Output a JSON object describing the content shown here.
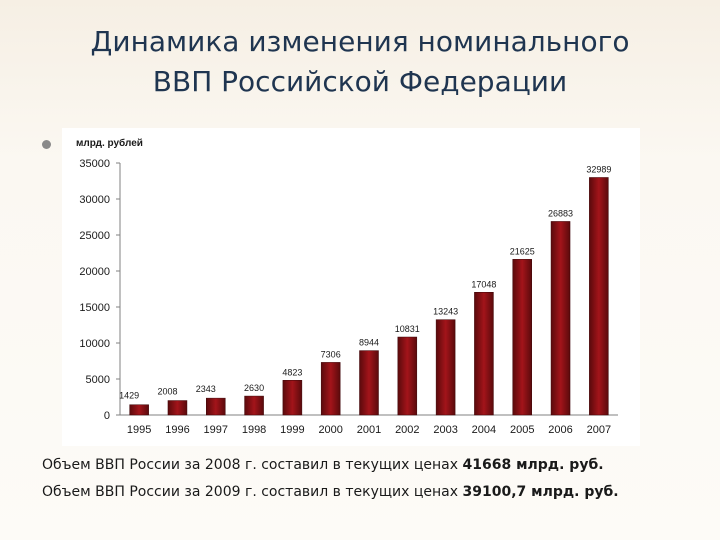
{
  "slide": {
    "title_line1": "Динамика изменения номинального",
    "title_line2": "ВВП Российской Федерации"
  },
  "colors": {
    "bar_dark": "#5a0a0c",
    "bar_mid": "#a3141a",
    "title": "#1f3550"
  },
  "chart_data": {
    "type": "bar",
    "title": "",
    "ylabel": "млрд. рублей",
    "xlabel": "",
    "ylim": [
      0,
      35000
    ],
    "yticks": [
      0,
      5000,
      10000,
      15000,
      20000,
      25000,
      30000,
      35000
    ],
    "grid": false,
    "legend": "none",
    "categories": [
      "1995",
      "1996",
      "1997",
      "1998",
      "1999",
      "2000",
      "2001",
      "2002",
      "2003",
      "2004",
      "2005",
      "2006",
      "2007"
    ],
    "values": [
      1429,
      2008,
      2343,
      2630,
      4823,
      7306,
      8944,
      10831,
      13243,
      17048,
      21625,
      26883,
      32989
    ]
  },
  "footer": {
    "line1_prefix": "Объем ВВП России за 2008 г. составил в текущих ценах ",
    "line1_value": "41668 млрд. руб.",
    "line2_prefix": "Объем ВВП России за 2009 г. составил в текущих ценах ",
    "line2_value": "39100,7 млрд. руб."
  }
}
